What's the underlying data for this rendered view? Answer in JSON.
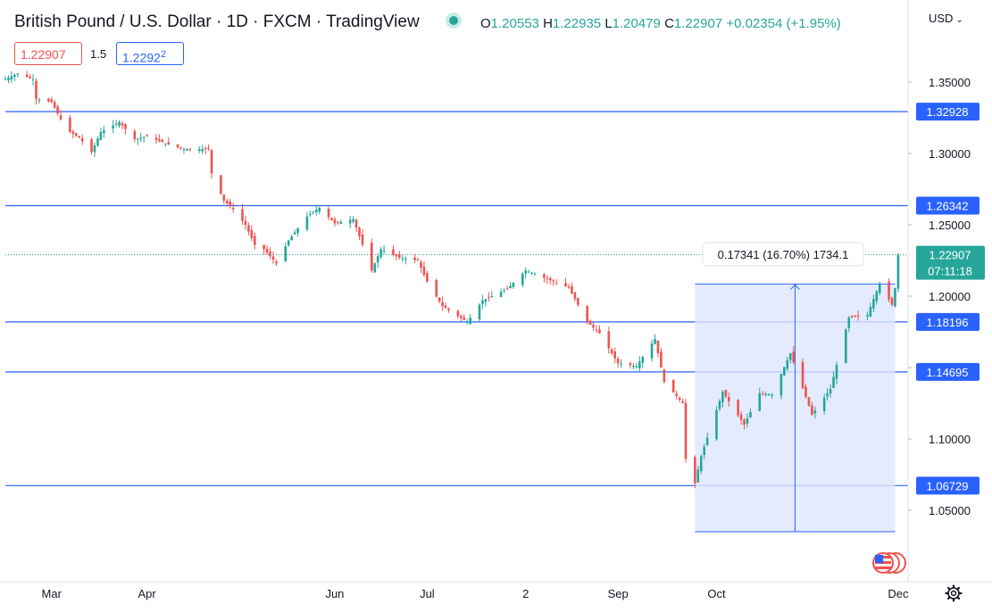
{
  "header": {
    "title": "British Pound / U.S. Dollar · 1D · FXCM · TradingView",
    "ohlc": {
      "o_label": "O",
      "o": "1.20553",
      "h_label": "H",
      "h": "1.22935",
      "l_label": "L",
      "l": "1.20479",
      "c_label": "C",
      "c": "1.22907",
      "change": "+0.02354 (+1.95%)"
    },
    "currency": "USD",
    "bid": "1.22907",
    "spread": "1.5",
    "ask_main": "1.2292",
    "ask_sup": "2"
  },
  "colors": {
    "up": "#26a69a",
    "down": "#ef5350",
    "line": "#2962ff",
    "range_fill": "#dde6ff"
  },
  "chart_data": {
    "type": "candlestick",
    "title": "British Pound / U.S. Dollar · 1D · FXCM · TradingView",
    "ylim": [
      1.0375,
      1.3666
    ],
    "y_ticks": [
      1.05,
      1.1,
      1.15,
      1.2,
      1.25,
      1.3,
      1.35
    ],
    "y_tick_labels": [
      "1.05000",
      "1.10000",
      "1.15000",
      "1.20000",
      "1.25000",
      "1.30000",
      "1.35000"
    ],
    "x_tick_labels": [
      {
        "label": "Mar",
        "date": "2022-03-01"
      },
      {
        "label": "Apr",
        "date": "2022-04-01"
      },
      {
        "label": "Jun",
        "date": "2022-06-01"
      },
      {
        "label": "Jul",
        "date": "2022-07-01"
      },
      {
        "label": "2",
        "date": "2022-08-02"
      },
      {
        "label": "Sep",
        "date": "2022-09-01"
      },
      {
        "label": "Oct",
        "date": "2022-10-03"
      },
      {
        "label": "Dec",
        "date": "2022-12-01"
      }
    ],
    "horizontal_levels": [
      {
        "value": 1.32928,
        "label": "1.32928"
      },
      {
        "value": 1.26342,
        "label": "1.26342"
      },
      {
        "value": 1.18196,
        "label": "1.18196"
      },
      {
        "value": 1.14695,
        "label": "1.14695"
      },
      {
        "value": 1.06729,
        "label": "1.06729"
      }
    ],
    "last_price": {
      "value": 1.22907,
      "label": "1.22907",
      "countdown": "07:11:18"
    },
    "measure": {
      "from_date": "2022-09-26",
      "to_date": "2022-11-30",
      "low": 1.035,
      "high": 1.2085,
      "label": "0.17341 (16.70%) 1734.1"
    },
    "price_path": [
      [
        "2022-02-14",
        1.352
      ],
      [
        "2022-02-18",
        1.356
      ],
      [
        "2022-02-23",
        1.352
      ],
      [
        "2022-02-24",
        1.338
      ],
      [
        "2022-03-01",
        1.336
      ],
      [
        "2022-03-04",
        1.324
      ],
      [
        "2022-03-07",
        1.315
      ],
      [
        "2022-03-10",
        1.311
      ],
      [
        "2022-03-14",
        1.301
      ],
      [
        "2022-03-17",
        1.315
      ],
      [
        "2022-03-23",
        1.322
      ],
      [
        "2022-03-28",
        1.31
      ],
      [
        "2022-04-01",
        1.312
      ],
      [
        "2022-04-07",
        1.307
      ],
      [
        "2022-04-13",
        1.303
      ],
      [
        "2022-04-19",
        1.303
      ],
      [
        "2022-04-21",
        1.303
      ],
      [
        "2022-04-22",
        1.286
      ],
      [
        "2022-04-26",
        1.267
      ],
      [
        "2022-04-29",
        1.261
      ],
      [
        "2022-05-03",
        1.25
      ],
      [
        "2022-05-06",
        1.236
      ],
      [
        "2022-05-09",
        1.233
      ],
      [
        "2022-05-13",
        1.223
      ],
      [
        "2022-05-17",
        1.239
      ],
      [
        "2022-05-23",
        1.256
      ],
      [
        "2022-05-27",
        1.262
      ],
      [
        "2022-06-01",
        1.251
      ],
      [
        "2022-06-07",
        1.254
      ],
      [
        "2022-06-13",
        1.218
      ],
      [
        "2022-06-16",
        1.233
      ],
      [
        "2022-06-22",
        1.227
      ],
      [
        "2022-06-28",
        1.225
      ],
      [
        "2022-07-01",
        1.21
      ],
      [
        "2022-07-06",
        1.193
      ],
      [
        "2022-07-14",
        1.182
      ],
      [
        "2022-07-19",
        1.197
      ],
      [
        "2022-07-27",
        1.205
      ],
      [
        "2022-08-02",
        1.218
      ],
      [
        "2022-08-09",
        1.212
      ],
      [
        "2022-08-16",
        1.206
      ],
      [
        "2022-08-22",
        1.182
      ],
      [
        "2022-08-26",
        1.174
      ],
      [
        "2022-09-01",
        1.153
      ],
      [
        "2022-09-07",
        1.151
      ],
      [
        "2022-09-13",
        1.17
      ],
      [
        "2022-09-16",
        1.14
      ],
      [
        "2022-09-22",
        1.125
      ],
      [
        "2022-09-23",
        1.086
      ],
      [
        "2022-09-26",
        1.069
      ],
      [
        "2022-09-28",
        1.088
      ],
      [
        "2022-10-05",
        1.133
      ],
      [
        "2022-10-12",
        1.11
      ],
      [
        "2022-10-17",
        1.132
      ],
      [
        "2022-10-21",
        1.131
      ],
      [
        "2022-10-27",
        1.16
      ],
      [
        "2022-11-03",
        1.117
      ],
      [
        "2022-11-09",
        1.135
      ],
      [
        "2022-11-15",
        1.185
      ],
      [
        "2022-11-21",
        1.187
      ],
      [
        "2022-11-25",
        1.209
      ],
      [
        "2022-11-29",
        1.194
      ],
      [
        "2022-11-30",
        1.2055
      ],
      [
        "2022-12-01",
        1.22907
      ]
    ]
  },
  "icons": {
    "flag": "us-flag-icon",
    "settings": "gear-icon"
  }
}
